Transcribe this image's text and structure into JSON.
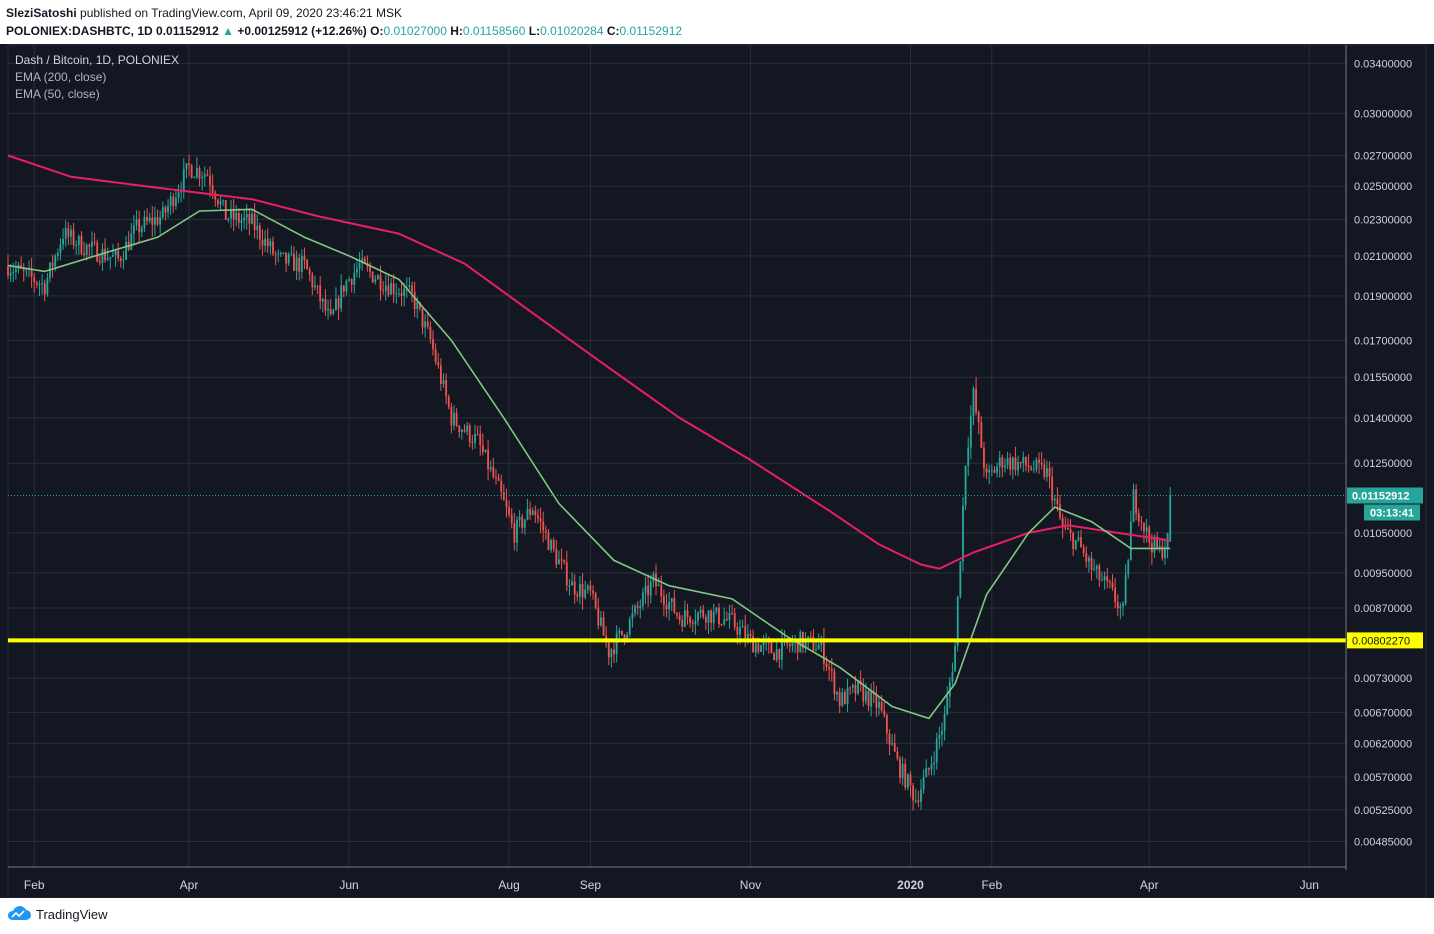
{
  "header": {
    "author": "SleziSatoshi",
    "published_text": "published on TradingView.com, April 09, 2020 23:46:21 MSK",
    "symbol_line": "POLONIEX:DASHBTC, 1D",
    "last": "0.01152912",
    "change_arrow": "▲",
    "change": "+0.00125912 (+12.26%)",
    "o_label": "O:",
    "o": "0.01027000",
    "h_label": "H:",
    "h": "0.01158560",
    "l_label": "L:",
    "l": "0.01020284",
    "c_label": "C:",
    "c": "0.01152912"
  },
  "legend": {
    "title": "Dash / Bitcoin, 1D, POLONIEX",
    "ema200": "EMA (200, close)",
    "ema50": "EMA (50, close)"
  },
  "footer": {
    "brand": "TradingView",
    "logo_icon": "tradingview-cloud-icon"
  },
  "colors": {
    "background": "#131722",
    "grid": "#2a2e39",
    "up": "#26a69a",
    "down": "#ef5350",
    "ema200": "#e91e63",
    "ema50": "#81c784",
    "support": "#ffff00"
  },
  "chart_data": {
    "type": "candlestick",
    "title": "Dash / Bitcoin, 1D, POLONIEX",
    "scale": "log",
    "ylim": [
      0.00455,
      0.0356
    ],
    "y_ticks": [
      "0.03400000",
      "0.03000000",
      "0.02700000",
      "0.02500000",
      "0.02300000",
      "0.02100000",
      "0.01900000",
      "0.01700000",
      "0.01550000",
      "0.01400000",
      "0.01250000",
      "0.01050000",
      "0.00950000",
      "0.00870000",
      "0.00730000",
      "0.00670000",
      "0.00620000",
      "0.00570000",
      "0.00525000",
      "0.00485000"
    ],
    "x_ticks": [
      {
        "label": "Feb",
        "date": "2019-02-01"
      },
      {
        "label": "Apr",
        "date": "2019-04-01"
      },
      {
        "label": "Jun",
        "date": "2019-06-01"
      },
      {
        "label": "Aug",
        "date": "2019-08-01"
      },
      {
        "label": "Sep",
        "date": "2019-09-01"
      },
      {
        "label": "Nov",
        "date": "2019-11-01"
      },
      {
        "label": "2020",
        "date": "2020-01-01"
      },
      {
        "label": "Feb",
        "date": "2020-02-01"
      },
      {
        "label": "Apr",
        "date": "2020-04-01"
      },
      {
        "label": "Jun",
        "date": "2020-06-01"
      }
    ],
    "xlim": [
      "2019-01-22",
      "2020-06-15"
    ],
    "price_path": [
      [
        "2019-01-22",
        0.0205
      ],
      [
        "2019-02-05",
        0.0195
      ],
      [
        "2019-02-12",
        0.0222
      ],
      [
        "2019-02-20",
        0.0215
      ],
      [
        "2019-03-05",
        0.0208
      ],
      [
        "2019-03-12",
        0.0225
      ],
      [
        "2019-03-22",
        0.0232
      ],
      [
        "2019-04-01",
        0.0262
      ],
      [
        "2019-04-08",
        0.0258
      ],
      [
        "2019-04-15",
        0.0232
      ],
      [
        "2019-04-25",
        0.0228
      ],
      [
        "2019-05-05",
        0.0208
      ],
      [
        "2019-05-15",
        0.0205
      ],
      [
        "2019-05-25",
        0.0178
      ],
      [
        "2019-05-30",
        0.0195
      ],
      [
        "2019-06-05",
        0.0205
      ],
      [
        "2019-06-15",
        0.0196
      ],
      [
        "2019-06-25",
        0.019
      ],
      [
        "2019-07-02",
        0.017
      ],
      [
        "2019-07-10",
        0.014
      ],
      [
        "2019-07-20",
        0.0132
      ],
      [
        "2019-07-28",
        0.0117
      ],
      [
        "2019-08-03",
        0.0105
      ],
      [
        "2019-08-10",
        0.0112
      ],
      [
        "2019-08-18",
        0.01
      ],
      [
        "2019-08-25",
        0.0092
      ],
      [
        "2019-09-01",
        0.009
      ],
      [
        "2019-09-08",
        0.0078
      ],
      [
        "2019-09-15",
        0.0083
      ],
      [
        "2019-09-25",
        0.0093
      ],
      [
        "2019-10-05",
        0.0085
      ],
      [
        "2019-10-15",
        0.0086
      ],
      [
        "2019-10-25",
        0.0084
      ],
      [
        "2019-11-01",
        0.008
      ],
      [
        "2019-11-10",
        0.0078
      ],
      [
        "2019-11-20",
        0.008
      ],
      [
        "2019-11-28",
        0.0079
      ],
      [
        "2019-12-05",
        0.0069
      ],
      [
        "2019-12-12",
        0.0071
      ],
      [
        "2019-12-20",
        0.0068
      ],
      [
        "2019-12-27",
        0.0059
      ],
      [
        "2020-01-03",
        0.0054
      ],
      [
        "2020-01-08",
        0.0058
      ],
      [
        "2020-01-14",
        0.0066
      ],
      [
        "2020-01-18",
        0.0079
      ],
      [
        "2020-01-22",
        0.0126
      ],
      [
        "2020-01-25",
        0.0148
      ],
      [
        "2020-01-30",
        0.012
      ],
      [
        "2020-02-05",
        0.0126
      ],
      [
        "2020-02-15",
        0.0124
      ],
      [
        "2020-02-22",
        0.0122
      ],
      [
        "2020-02-28",
        0.0106
      ],
      [
        "2020-03-05",
        0.0102
      ],
      [
        "2020-03-10",
        0.0096
      ],
      [
        "2020-03-17",
        0.0091
      ],
      [
        "2020-03-22",
        0.0086
      ],
      [
        "2020-03-26",
        0.0115
      ],
      [
        "2020-04-01",
        0.0103
      ],
      [
        "2020-04-05",
        0.01
      ],
      [
        "2020-04-08",
        0.0103
      ],
      [
        "2020-04-09",
        0.01153
      ]
    ],
    "ema200": [
      [
        "2019-01-22",
        0.027
      ],
      [
        "2019-02-15",
        0.0256
      ],
      [
        "2019-03-20",
        0.0249
      ],
      [
        "2019-04-25",
        0.0242
      ],
      [
        "2019-05-20",
        0.0232
      ],
      [
        "2019-06-20",
        0.0222
      ],
      [
        "2019-07-15",
        0.0206
      ],
      [
        "2019-08-10",
        0.0182
      ],
      [
        "2019-09-05",
        0.0161
      ],
      [
        "2019-10-05",
        0.014
      ],
      [
        "2019-11-01",
        0.0126
      ],
      [
        "2019-12-01",
        0.0111
      ],
      [
        "2019-12-20",
        0.0102
      ],
      [
        "2020-01-05",
        0.0097
      ],
      [
        "2020-01-12",
        0.0096
      ],
      [
        "2020-01-25",
        0.01
      ],
      [
        "2020-02-15",
        0.0105
      ],
      [
        "2020-03-01",
        0.0107
      ],
      [
        "2020-03-20",
        0.0105
      ],
      [
        "2020-04-09",
        0.0103
      ]
    ],
    "ema50": [
      [
        "2019-01-22",
        0.0205
      ],
      [
        "2019-02-05",
        0.0202
      ],
      [
        "2019-03-01",
        0.0212
      ],
      [
        "2019-03-20",
        0.022
      ],
      [
        "2019-04-05",
        0.0235
      ],
      [
        "2019-04-25",
        0.0236
      ],
      [
        "2019-05-15",
        0.022
      ],
      [
        "2019-06-01",
        0.021
      ],
      [
        "2019-06-20",
        0.0198
      ],
      [
        "2019-07-10",
        0.017
      ],
      [
        "2019-07-30",
        0.014
      ],
      [
        "2019-08-20",
        0.0113
      ],
      [
        "2019-09-10",
        0.0098
      ],
      [
        "2019-10-01",
        0.0092
      ],
      [
        "2019-10-25",
        0.0089
      ],
      [
        "2019-11-15",
        0.0081
      ],
      [
        "2019-12-05",
        0.0075
      ],
      [
        "2019-12-25",
        0.0068
      ],
      [
        "2020-01-08",
        0.0066
      ],
      [
        "2020-01-18",
        0.0072
      ],
      [
        "2020-01-30",
        0.009
      ],
      [
        "2020-02-15",
        0.0105
      ],
      [
        "2020-02-25",
        0.0112
      ],
      [
        "2020-03-10",
        0.0108
      ],
      [
        "2020-03-25",
        0.0101
      ],
      [
        "2020-04-09",
        0.0101
      ]
    ],
    "support_level": 0.0080227,
    "support_label": "0.00802270",
    "last_price": 0.01152912,
    "last_price_label": "0.01152912",
    "countdown": "03:13:41",
    "grid": true
  }
}
